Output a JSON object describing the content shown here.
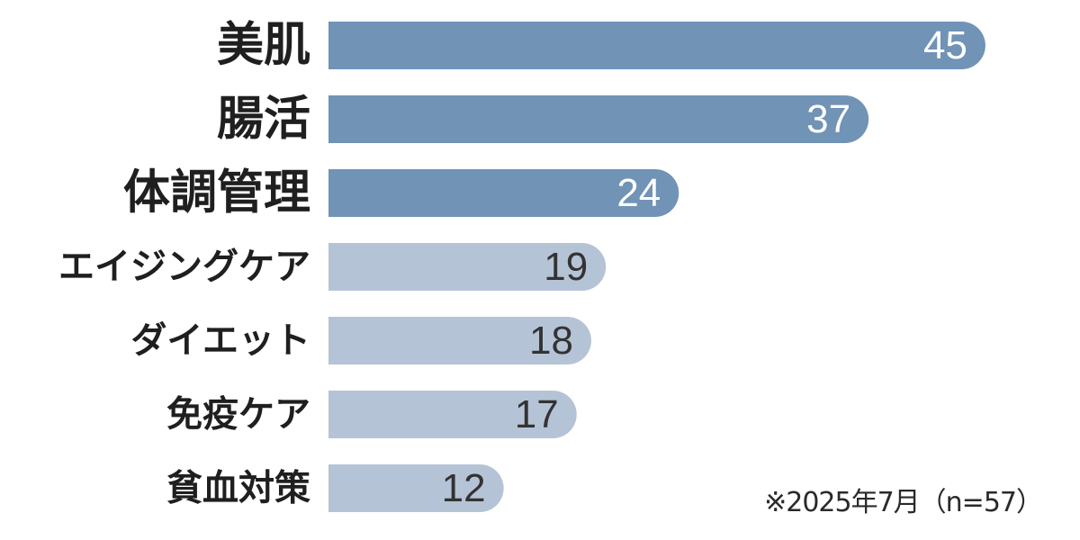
{
  "chart_data": {
    "type": "bar",
    "orientation": "horizontal",
    "categories": [
      "美肌",
      "腸活",
      "体調管理",
      "エイジングケア",
      "ダイエット",
      "免疫ケア",
      "貧血対策"
    ],
    "values": [
      45,
      37,
      24,
      19,
      18,
      17,
      12
    ],
    "highlighted_count": 3,
    "note": "※2025年7月（n=57）",
    "colors": {
      "highlight": "#7093b6",
      "normal": "#b5c3d6",
      "label_text": "#1f1f1f",
      "value_text_highlight": "#ffffff",
      "value_text_normal": "#333333"
    }
  }
}
